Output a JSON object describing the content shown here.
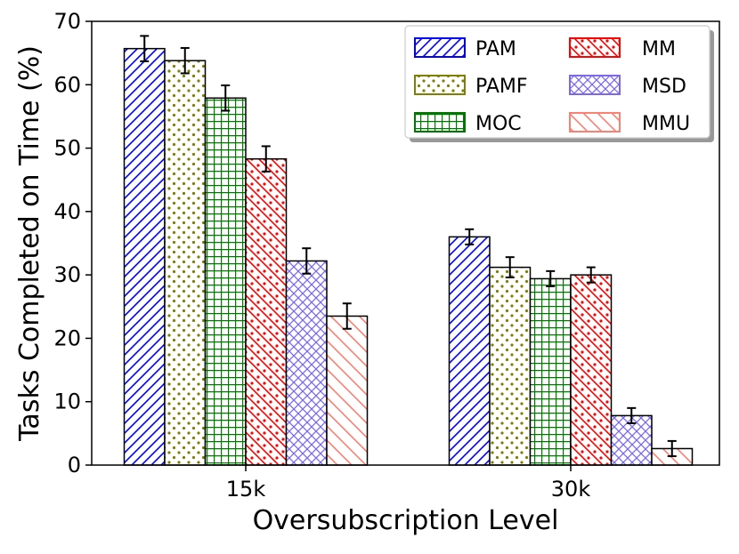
{
  "chart_data": {
    "type": "bar",
    "title": "",
    "xlabel": "Oversubscription Level",
    "ylabel": "Tasks Completed on Time (%)",
    "categories": [
      "15k",
      "30k"
    ],
    "ylim": [
      0,
      70
    ],
    "yticks": [
      0,
      10,
      20,
      30,
      40,
      50,
      60,
      70
    ],
    "legend_position": "top-right",
    "series": [
      {
        "name": "PAM",
        "color": "#0000ff",
        "pattern": "diag-right",
        "values": [
          65.7,
          36.0
        ],
        "errors": [
          2.0,
          1.2
        ]
      },
      {
        "name": "PAMF",
        "color": "#808000",
        "pattern": "dots",
        "values": [
          63.8,
          31.2
        ],
        "errors": [
          2.0,
          1.6
        ]
      },
      {
        "name": "MOC",
        "color": "#007700",
        "pattern": "grid",
        "values": [
          57.9,
          29.4
        ],
        "errors": [
          2.0,
          1.2
        ]
      },
      {
        "name": "MM",
        "color": "#ff0000",
        "pattern": "diag-dots",
        "values": [
          48.3,
          30.0
        ],
        "errors": [
          2.0,
          1.2
        ]
      },
      {
        "name": "MSD",
        "color": "#7b68ee",
        "pattern": "cross",
        "values": [
          32.2,
          7.8
        ],
        "errors": [
          2.0,
          1.2
        ]
      },
      {
        "name": "MMU",
        "color": "#fa8072",
        "pattern": "diag-left",
        "values": [
          23.5,
          2.6
        ],
        "errors": [
          2.0,
          1.2
        ]
      }
    ]
  }
}
